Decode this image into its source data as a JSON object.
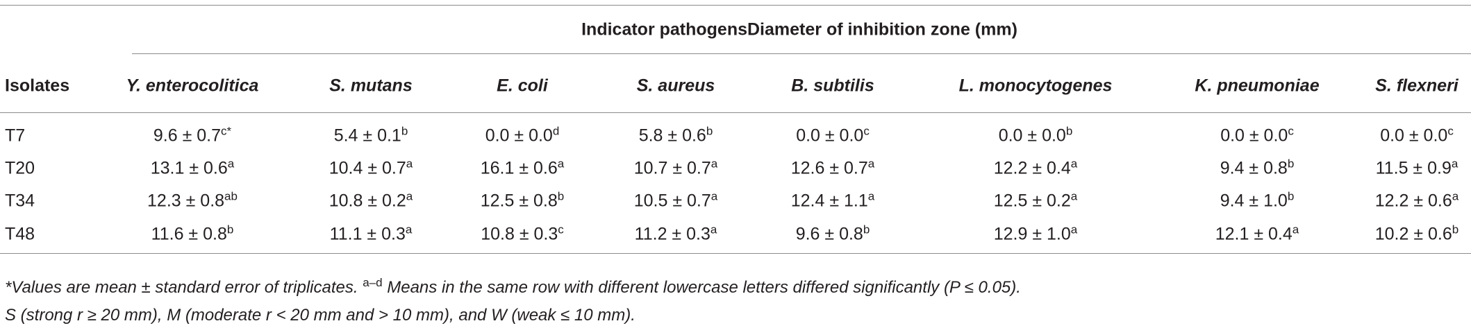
{
  "header": {
    "group": "Indicator pathogensDiameter of inhibition zone (mm)",
    "columns": [
      "Isolates",
      "Y. enterocolitica",
      "S. mutans",
      "E. coli",
      "S. aureus",
      "B. subtilis",
      "L. monocytogenes",
      "K. pneumoniae",
      "S. flexneri"
    ]
  },
  "rows": [
    {
      "isolate": "T7",
      "cells": [
        {
          "text": "9.6 ± 0.7",
          "sup": "c*"
        },
        {
          "text": "5.4 ± 0.1",
          "sup": "b"
        },
        {
          "text": "0.0 ± 0.0",
          "sup": "d"
        },
        {
          "text": "5.8 ± 0.6",
          "sup": "b"
        },
        {
          "text": "0.0 ± 0.0",
          "sup": "c"
        },
        {
          "text": "0.0 ± 0.0",
          "sup": "b"
        },
        {
          "text": "0.0 ± 0.0",
          "sup": "c"
        },
        {
          "text": "0.0 ± 0.0",
          "sup": "c"
        }
      ]
    },
    {
      "isolate": "T20",
      "cells": [
        {
          "text": "13.1 ± 0.6",
          "sup": "a"
        },
        {
          "text": "10.4 ± 0.7",
          "sup": "a"
        },
        {
          "text": "16.1 ± 0.6",
          "sup": "a"
        },
        {
          "text": "10.7 ± 0.7",
          "sup": "a"
        },
        {
          "text": "12.6 ± 0.7",
          "sup": "a"
        },
        {
          "text": "12.2 ± 0.4",
          "sup": "a"
        },
        {
          "text": "9.4 ± 0.8",
          "sup": "b"
        },
        {
          "text": "11.5 ± 0.9",
          "sup": "a"
        }
      ]
    },
    {
      "isolate": "T34",
      "cells": [
        {
          "text": "12.3 ± 0.8",
          "sup": "ab"
        },
        {
          "text": "10.8 ± 0.2",
          "sup": "a"
        },
        {
          "text": "12.5 ± 0.8",
          "sup": "b"
        },
        {
          "text": "10.5 ± 0.7",
          "sup": "a"
        },
        {
          "text": "12.4 ± 1.1",
          "sup": "a"
        },
        {
          "text": "12.5 ± 0.2",
          "sup": "a"
        },
        {
          "text": "9.4 ± 1.0",
          "sup": "b"
        },
        {
          "text": "12.2 ± 0.6",
          "sup": "a"
        }
      ]
    },
    {
      "isolate": "T48",
      "cells": [
        {
          "text": "11.6 ± 0.8",
          "sup": "b"
        },
        {
          "text": "11.1 ± 0.3",
          "sup": "a"
        },
        {
          "text": "10.8 ± 0.3",
          "sup": "c"
        },
        {
          "text": "11.2 ± 0.3",
          "sup": "a"
        },
        {
          "text": "9.6 ± 0.8",
          "sup": "b"
        },
        {
          "text": "12.9 ± 1.0",
          "sup": "a"
        },
        {
          "text": "12.1 ± 0.4",
          "sup": "a"
        },
        {
          "text": "10.2 ± 0.6",
          "sup": "b"
        }
      ]
    }
  ],
  "footnotes": [
    {
      "pre": "*Values are mean ± standard error of triplicates. ",
      "sup": "a–d",
      "post": " Means in the same row with different lowercase letters differed significantly (P ≤ 0.05)."
    },
    {
      "pre": "S (strong r ≥ 20 mm), M (moderate r < 20 mm and > 10 mm), and W (weak ≤ 10 mm)."
    }
  ]
}
